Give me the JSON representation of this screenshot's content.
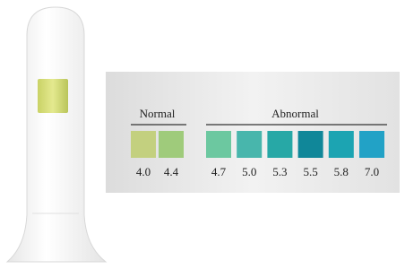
{
  "groups": [
    {
      "label": "Normal",
      "swatches": [
        {
          "label": "4.0",
          "color": "#c3d07f"
        },
        {
          "label": "4.4",
          "color": "#9fcb7b"
        }
      ]
    },
    {
      "label": "Abnormal",
      "swatches": [
        {
          "label": "4.7",
          "color": "#6cc8a0"
        },
        {
          "label": "5.0",
          "color": "#48b6ac"
        },
        {
          "label": "5.3",
          "color": "#27a8a6"
        },
        {
          "label": "5.5",
          "color": "#108799"
        },
        {
          "label": "5.8",
          "color": "#1ca4b2"
        },
        {
          "label": "7.0",
          "color": "#22a2c6"
        }
      ]
    }
  ]
}
